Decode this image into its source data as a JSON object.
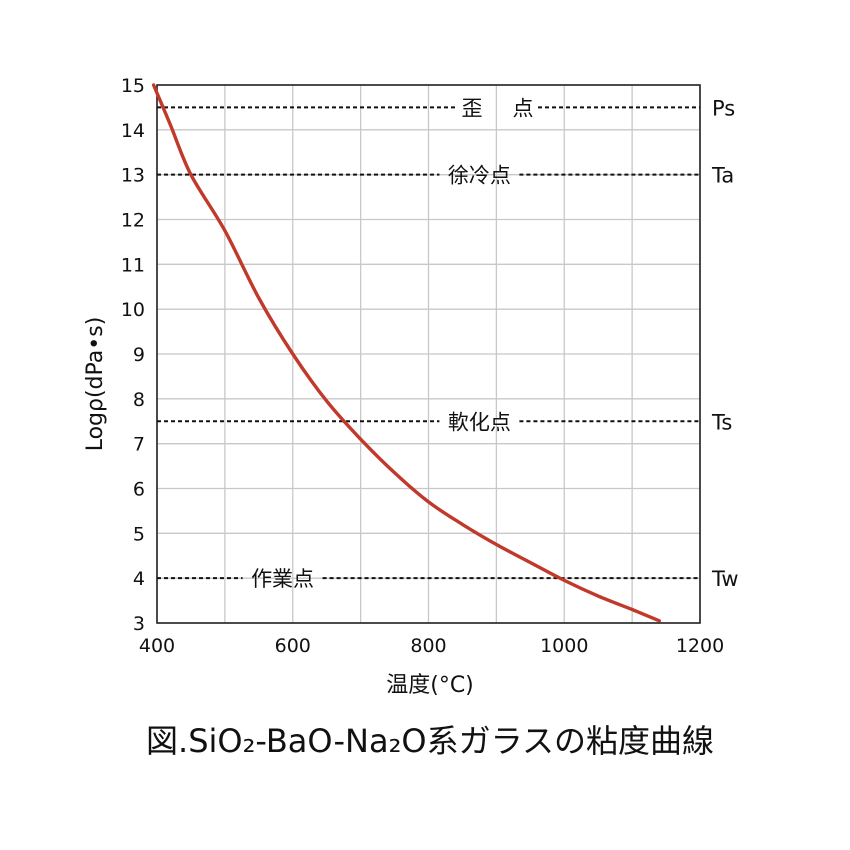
{
  "chart_data": {
    "type": "line",
    "title": "図.SiO₂-BaO-Na₂O系ガラスの粘度曲線",
    "xlabel": "温度(°C)",
    "ylabel": "Logρ(dPa•s)",
    "xlim": [
      400,
      1200
    ],
    "ylim": [
      3,
      15
    ],
    "xticks": [
      400,
      600,
      800,
      1000,
      1200
    ],
    "yticks": [
      3,
      4,
      5,
      6,
      7,
      8,
      9,
      10,
      11,
      12,
      13,
      14,
      15
    ],
    "grid": true,
    "series": [
      {
        "color": "#c0392b",
        "x": [
          395,
          420,
          450,
          500,
          550,
          600,
          650,
          700,
          750,
          800,
          850,
          900,
          950,
          1000,
          1050,
          1100,
          1140
        ],
        "y": [
          15.0,
          14.1,
          13.0,
          11.75,
          10.25,
          9.0,
          7.95,
          7.1,
          6.35,
          5.7,
          5.2,
          4.75,
          4.35,
          3.95,
          3.6,
          3.3,
          3.05
        ]
      }
    ],
    "reference_lines": [
      {
        "value": 14.5,
        "label_gap_left": "歪",
        "label_gap_right": "点",
        "right_label": "Ps"
      },
      {
        "value": 13.0,
        "label": "徐冷点",
        "label_x": 875,
        "right_label": "Ta"
      },
      {
        "value": 7.5,
        "label": "軟化点",
        "label_x": 875,
        "right_label": "Ts"
      },
      {
        "value": 4.0,
        "label": "作業点",
        "label_x": 585,
        "right_label": "Tw"
      }
    ]
  }
}
